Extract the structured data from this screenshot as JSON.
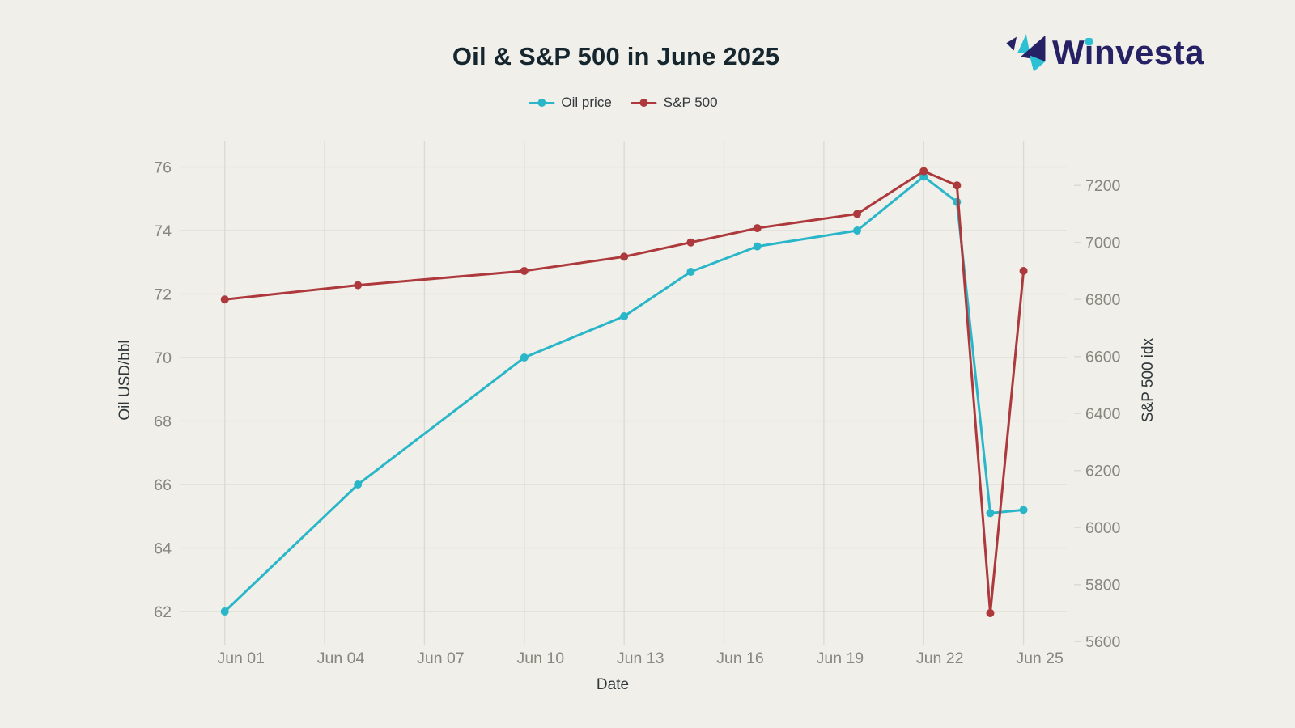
{
  "theme": {
    "background": "#f0efe9",
    "grid_color": "#dbdad3",
    "tick_text_color": "#87867f",
    "axis_title_color": "#30373a",
    "title_color": "#16262e"
  },
  "logo": {
    "text": "Winvesta",
    "navy": "#262164",
    "teal": "#2cc0d4"
  },
  "chart_data": {
    "type": "line",
    "title": "Oil & S&P 500 in June 2025",
    "xlabel": "Date",
    "legend_position": "top-center",
    "grid": true,
    "x": [
      "Jun 01",
      "Jun 05",
      "Jun 10",
      "Jun 13",
      "Jun 15",
      "Jun 17",
      "Jun 20",
      "Jun 22",
      "Jun 23",
      "Jun 24",
      "Jun 25"
    ],
    "x_days": [
      1,
      5,
      10,
      13,
      15,
      17,
      20,
      22,
      23,
      24,
      25
    ],
    "x_tick_labels": [
      "Jun 01",
      "Jun 04",
      "Jun 07",
      "Jun 10",
      "Jun 13",
      "Jun 16",
      "Jun 19",
      "Jun 22",
      "Jun 25"
    ],
    "x_tick_days": [
      1,
      4,
      7,
      10,
      13,
      16,
      19,
      22,
      25
    ],
    "series": [
      {
        "name": "Oil price",
        "axis": "left",
        "color": "#29b6c9",
        "values": [
          62.0,
          66.0,
          70.0,
          71.3,
          72.7,
          73.5,
          74.0,
          75.7,
          74.9,
          65.1,
          65.2
        ]
      },
      {
        "name": "S&P 500",
        "axis": "right",
        "color": "#ad393d",
        "values": [
          6800,
          6850,
          6900,
          6950,
          7000,
          7050,
          7100,
          7250,
          7200,
          5700,
          6900
        ]
      }
    ],
    "left_axis": {
      "label": "Oil USD/bbl",
      "ticks": [
        62,
        64,
        66,
        68,
        70,
        72,
        74,
        76
      ],
      "min": 62,
      "max": 76
    },
    "right_axis": {
      "label": "S&P 500 idx",
      "ticks": [
        5600,
        5800,
        6000,
        6200,
        6400,
        6600,
        6800,
        7000,
        7200
      ],
      "min": 5600,
      "max": 7200
    }
  }
}
